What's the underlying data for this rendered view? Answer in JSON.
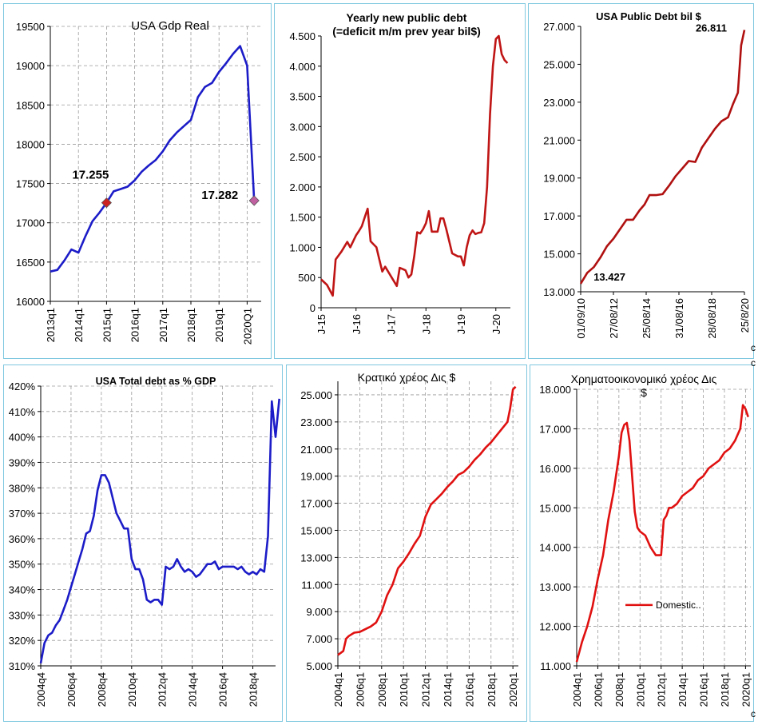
{
  "chart_data": [
    {
      "id": "gdp",
      "type": "line",
      "title": [
        "USA Gdp Real"
      ],
      "title_bold": false,
      "color": "#1c1cc8",
      "grid": true,
      "ylim": [
        16000,
        19500
      ],
      "yticks": [
        16000,
        16500,
        17000,
        17500,
        18000,
        18500,
        19000,
        19500
      ],
      "ytick_labels": [
        "16000",
        "16500",
        "17000",
        "17500",
        "18000",
        "18500",
        "19000",
        "19500"
      ],
      "xlim": [
        0,
        30
      ],
      "xticks": [
        0,
        4,
        8,
        12,
        16,
        20,
        24,
        28
      ],
      "xtick_labels": [
        "2013q1",
        "2014q1",
        "2015q1",
        "2016q1",
        "2017q1",
        "2018q1",
        "2019q1",
        "2020Q1"
      ],
      "series": [
        {
          "x": [
            0,
            1,
            2,
            3,
            4,
            5,
            6,
            7,
            8,
            9,
            10,
            11,
            12,
            13,
            14,
            15,
            16,
            17,
            18,
            19,
            20,
            21,
            22,
            23,
            24,
            25,
            26,
            27,
            28,
            29
          ],
          "y": [
            16380,
            16400,
            16520,
            16660,
            16620,
            16830,
            17020,
            17130,
            17255,
            17400,
            17430,
            17460,
            17540,
            17650,
            17730,
            17800,
            17910,
            18050,
            18150,
            18230,
            18310,
            18600,
            18730,
            18780,
            18920,
            19030,
            19150,
            19250,
            19000,
            17282
          ]
        }
      ],
      "markers": [
        {
          "x": 8,
          "y": 17255,
          "label": "17.255",
          "color": "#cc2222",
          "label_pos": "upper-left"
        },
        {
          "x": 29,
          "y": 17282,
          "label": "17.282",
          "color": "#c060a0",
          "label_pos": "left"
        }
      ]
    },
    {
      "id": "deficit",
      "type": "line",
      "title": [
        "Yearly new public  debt",
        "(=deficit m/m prev year bil$)"
      ],
      "title_bold": true,
      "color": "#c01515",
      "grid": false,
      "ylim": [
        0,
        4500
      ],
      "yticks": [
        0,
        500,
        1000,
        1500,
        2000,
        2500,
        3000,
        3500,
        4000,
        4500
      ],
      "ytick_labels": [
        "0",
        "500",
        "1.000",
        "1.500",
        "2.000",
        "2.500",
        "3.000",
        "3.500",
        "4.000",
        "4.500"
      ],
      "xlim": [
        0,
        65
      ],
      "xticks": [
        0,
        12,
        24,
        36,
        48,
        60
      ],
      "xtick_labels": [
        "J-15",
        "J-16",
        "J-17",
        "J-18",
        "J-19",
        "J-20"
      ],
      "series": [
        {
          "x": [
            0,
            2,
            4,
            5,
            7,
            9,
            10,
            11,
            12,
            13,
            14,
            15,
            16,
            17,
            19,
            20,
            21,
            22,
            24,
            25,
            26,
            27,
            28,
            29,
            30,
            31,
            32,
            33,
            34,
            35,
            36,
            37,
            38,
            39,
            40,
            41,
            42,
            43,
            45,
            47,
            48,
            49,
            50,
            51,
            52,
            53,
            54,
            55,
            56,
            57,
            58,
            59,
            60,
            61,
            62,
            63,
            64
          ],
          "y": [
            470,
            380,
            200,
            800,
            930,
            1090,
            1000,
            1100,
            1200,
            1270,
            1350,
            1500,
            1640,
            1100,
            1000,
            800,
            600,
            680,
            520,
            440,
            360,
            660,
            640,
            620,
            500,
            550,
            860,
            1250,
            1230,
            1300,
            1400,
            1600,
            1260,
            1260,
            1260,
            1480,
            1480,
            1300,
            900,
            850,
            850,
            700,
            1000,
            1200,
            1280,
            1220,
            1240,
            1250,
            1400,
            2000,
            3200,
            4000,
            4450,
            4500,
            4200,
            4100,
            4050
          ]
        }
      ]
    },
    {
      "id": "pubdebt",
      "type": "line",
      "title": [
        "USA Public  Debt bil $"
      ],
      "title_bold": true,
      "color": "#b01010",
      "grid": false,
      "ylim": [
        13000,
        27000
      ],
      "yticks": [
        13000,
        15000,
        17000,
        19000,
        21000,
        23000,
        25000,
        27000
      ],
      "ytick_labels": [
        "13.000",
        "15.000",
        "17.000",
        "19.000",
        "21.000",
        "23.000",
        "25.000",
        "27.000"
      ],
      "xlim": [
        0,
        10
      ],
      "xticks": [
        0,
        2,
        4,
        6,
        8,
        10
      ],
      "xtick_labels": [
        "01/09/10",
        "27/08/12",
        "25/08/14",
        "31/08/16",
        "28/08/18",
        "25/8/20"
      ],
      "series": [
        {
          "x": [
            0,
            0.4,
            0.8,
            1.2,
            1.6,
            2.0,
            2.4,
            2.8,
            3.2,
            3.6,
            3.9,
            4.2,
            4.6,
            5.0,
            5.4,
            5.8,
            6.2,
            6.6,
            7.0,
            7.4,
            7.8,
            8.2,
            8.6,
            9.0,
            9.3,
            9.6,
            9.8,
            10
          ],
          "y": [
            13427,
            14000,
            14300,
            14800,
            15400,
            15800,
            16300,
            16800,
            16800,
            17300,
            17600,
            18100,
            18100,
            18150,
            18600,
            19100,
            19500,
            19900,
            19850,
            20600,
            21100,
            21600,
            22000,
            22200,
            22900,
            23500,
            26000,
            26811
          ]
        }
      ],
      "annotations": [
        {
          "x": 0.4,
          "y": 13427,
          "text": "13.427",
          "pos": "below-right"
        },
        {
          "x": 10,
          "y": 26811,
          "text": "26.811",
          "pos": "left"
        }
      ]
    },
    {
      "id": "totaldebt",
      "type": "line",
      "title": [
        "USA Total debt as % GDP"
      ],
      "title_bold": true,
      "color": "#1c1cc8",
      "grid": true,
      "ylim": [
        310,
        420
      ],
      "yticks": [
        310,
        320,
        330,
        340,
        350,
        360,
        370,
        380,
        390,
        400,
        410,
        420
      ],
      "ytick_labels": [
        "310%",
        "320%",
        "330%",
        "340%",
        "350%",
        "360%",
        "370%",
        "380%",
        "390%",
        "400%",
        "410%",
        "420%"
      ],
      "xlim": [
        0,
        62
      ],
      "xticks": [
        0,
        8,
        16,
        24,
        32,
        40,
        48,
        56
      ],
      "xtick_labels": [
        "2004q4",
        "2006q4",
        "2008q4",
        "2010q4",
        "2012q4",
        "2014q4",
        "2016q4",
        "2018q4"
      ],
      "series": [
        {
          "x": [
            0,
            1,
            2,
            3,
            4,
            5,
            6,
            7,
            8,
            9,
            10,
            11,
            12,
            13,
            14,
            15,
            16,
            17,
            18,
            19,
            20,
            21,
            22,
            23,
            24,
            25,
            26,
            27,
            28,
            29,
            30,
            31,
            32,
            33,
            34,
            35,
            36,
            37,
            38,
            39,
            40,
            41,
            42,
            43,
            44,
            45,
            46,
            47,
            48,
            49,
            50,
            51,
            52,
            53,
            54,
            55,
            56,
            57,
            58,
            59,
            60,
            61,
            62,
            63
          ],
          "y": [
            311,
            319,
            322,
            323,
            326,
            328,
            332,
            336,
            341,
            346,
            351,
            356,
            362,
            363,
            369,
            379,
            385,
            385,
            382,
            376,
            370,
            367,
            364,
            364,
            352,
            348,
            348,
            344,
            336,
            335,
            336,
            336,
            334,
            349,
            348,
            349,
            352,
            349,
            347,
            348,
            347,
            345,
            346,
            348,
            350,
            350,
            351,
            348,
            349,
            349,
            349,
            349,
            348,
            349,
            347,
            346,
            347,
            346,
            348,
            347,
            361,
            414,
            400,
            415
          ]
        }
      ]
    },
    {
      "id": "govdebt",
      "type": "line",
      "title": [
        "Κρατικό χρέος Δις $"
      ],
      "title_bold": false,
      "color": "#e01010",
      "grid": true,
      "ylim": [
        5000,
        26000
      ],
      "yticks": [
        5000,
        7000,
        9000,
        11000,
        13000,
        15000,
        17000,
        19000,
        21000,
        23000,
        25000
      ],
      "ytick_labels": [
        "5.000",
        "7.000",
        "9.000",
        "11.000",
        "13.000",
        "15.000",
        "17.000",
        "19.000",
        "21.000",
        "23.000",
        "25.000"
      ],
      "xlim": [
        0,
        66
      ],
      "xticks": [
        0,
        8,
        16,
        24,
        32,
        40,
        48,
        56,
        64
      ],
      "xtick_labels": [
        "2004q1",
        "2006q1",
        "2008q1",
        "2010q1",
        "2012q1",
        "2014q1",
        "2016q1",
        "2018q1",
        "2020q1"
      ],
      "series": [
        {
          "x": [
            0,
            2,
            3,
            4,
            6,
            8,
            10,
            12,
            14,
            16,
            18,
            20,
            22,
            24,
            26,
            28,
            30,
            32,
            34,
            36,
            38,
            40,
            42,
            44,
            46,
            48,
            50,
            52,
            54,
            56,
            58,
            60,
            62,
            63,
            64,
            65
          ],
          "y": [
            5800,
            6100,
            7000,
            7200,
            7450,
            7500,
            7700,
            7900,
            8200,
            9000,
            10200,
            11000,
            12200,
            12700,
            13300,
            14000,
            14600,
            16000,
            16900,
            17300,
            17700,
            18200,
            18600,
            19100,
            19300,
            19700,
            20200,
            20600,
            21100,
            21500,
            22000,
            22500,
            23000,
            24000,
            25400,
            25600
          ]
        }
      ]
    },
    {
      "id": "findebt",
      "type": "line",
      "title": [
        "Χρηματοοικονομικό χρέος Δις",
        "$"
      ],
      "title_bold": false,
      "color": "#e01010",
      "grid": true,
      "ylim": [
        11000,
        18000
      ],
      "yticks": [
        11000,
        12000,
        13000,
        14000,
        15000,
        16000,
        17000,
        18000
      ],
      "ytick_labels": [
        "11.000",
        "12.000",
        "13.000",
        "14.000",
        "15.000",
        "16.000",
        "17.000",
        "18.000"
      ],
      "xlim": [
        0,
        66
      ],
      "xticks": [
        0,
        8,
        16,
        24,
        32,
        40,
        48,
        56,
        64
      ],
      "xtick_labels": [
        "2004q1",
        "2006q1",
        "2008q1",
        "2010q1",
        "2012q1",
        "2014q1",
        "2016q1",
        "2018q1",
        "2020q1"
      ],
      "series": [
        {
          "name": "Domestic..",
          "x": [
            0,
            2,
            4,
            6,
            8,
            10,
            12,
            14,
            16,
            17,
            18,
            19,
            20,
            21,
            22,
            23,
            24,
            26,
            28,
            30,
            32,
            33,
            34,
            35,
            36,
            38,
            40,
            42,
            44,
            46,
            48,
            50,
            52,
            54,
            56,
            58,
            60,
            62,
            63,
            64,
            65
          ],
          "y": [
            11100,
            11600,
            12000,
            12500,
            13200,
            13800,
            14700,
            15400,
            16300,
            16900,
            17100,
            17150,
            16700,
            15800,
            14900,
            14500,
            14400,
            14300,
            14000,
            13800,
            13800,
            14700,
            14800,
            15000,
            15000,
            15100,
            15300,
            15400,
            15500,
            15700,
            15800,
            16000,
            16100,
            16200,
            16400,
            16500,
            16700,
            17000,
            17600,
            17500,
            17300
          ]
        }
      ],
      "legend": {
        "position": "center",
        "text": "Domestic.."
      }
    }
  ],
  "stray_marks": [
    {
      "text": "c"
    },
    {
      "text": "c"
    },
    {
      "text": "c"
    }
  ]
}
